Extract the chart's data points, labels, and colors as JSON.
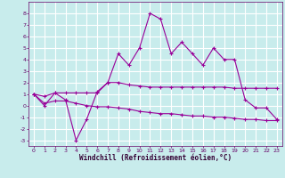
{
  "xlabel": "Windchill (Refroidissement éolien,°C)",
  "background_color": "#c8ecec",
  "grid_color": "#ffffff",
  "line_color": "#990099",
  "x": [
    0,
    1,
    2,
    3,
    4,
    5,
    6,
    7,
    8,
    9,
    10,
    11,
    12,
    13,
    14,
    15,
    16,
    17,
    18,
    19,
    20,
    21,
    22,
    23
  ],
  "line1": [
    1.0,
    0.0,
    1.1,
    0.5,
    -3.0,
    -1.2,
    1.2,
    2.0,
    4.5,
    3.5,
    5.0,
    8.0,
    7.5,
    4.5,
    5.5,
    4.5,
    3.5,
    5.0,
    4.0,
    4.0,
    0.5,
    -0.2,
    -0.2,
    -1.2
  ],
  "line2": [
    1.0,
    0.8,
    1.1,
    1.1,
    1.1,
    1.1,
    1.1,
    2.0,
    2.0,
    1.8,
    1.7,
    1.6,
    1.6,
    1.6,
    1.6,
    1.6,
    1.6,
    1.6,
    1.6,
    1.5,
    1.5,
    1.5,
    1.5,
    1.5
  ],
  "line3": [
    1.0,
    0.2,
    0.4,
    0.4,
    0.2,
    0.0,
    -0.1,
    -0.1,
    -0.2,
    -0.3,
    -0.5,
    -0.6,
    -0.7,
    -0.7,
    -0.8,
    -0.9,
    -0.9,
    -1.0,
    -1.0,
    -1.1,
    -1.2,
    -1.2,
    -1.3,
    -1.3
  ],
  "ylim": [
    -3.5,
    9.0
  ],
  "xlim": [
    -0.5,
    23.5
  ],
  "yticks": [
    -3,
    -2,
    -1,
    0,
    1,
    2,
    3,
    4,
    5,
    6,
    7,
    8
  ],
  "xticks": [
    0,
    1,
    2,
    3,
    4,
    5,
    6,
    7,
    8,
    9,
    10,
    11,
    12,
    13,
    14,
    15,
    16,
    17,
    18,
    19,
    20,
    21,
    22,
    23
  ],
  "tick_fontsize": 4.5,
  "xlabel_fontsize": 5.5
}
